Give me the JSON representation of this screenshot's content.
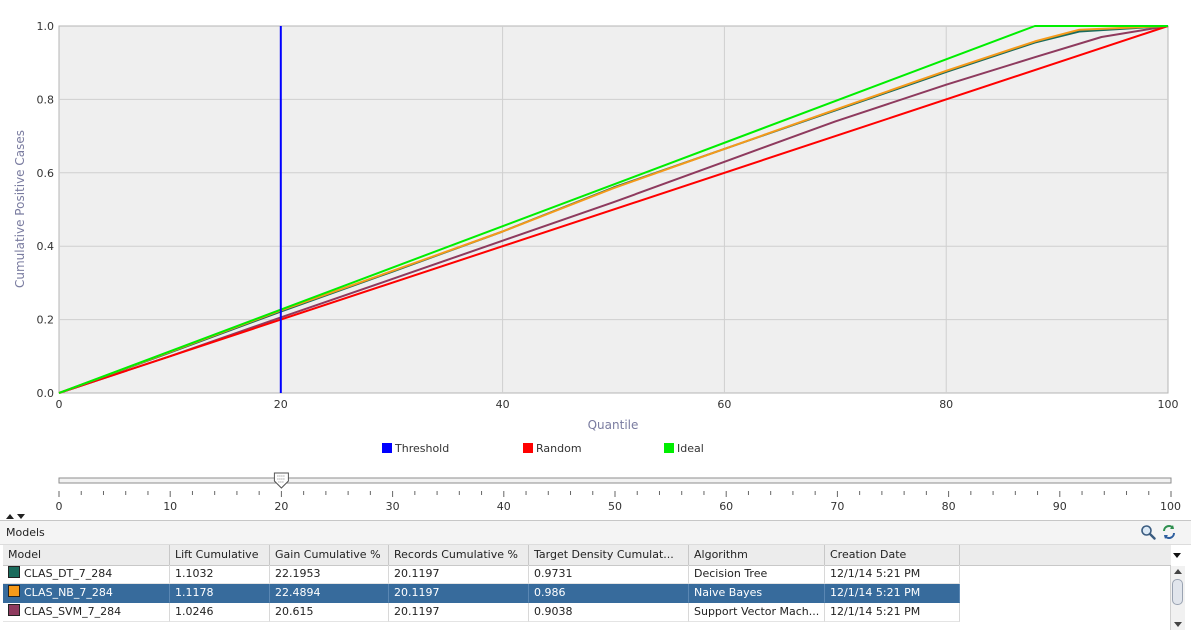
{
  "chart_data": {
    "type": "line",
    "title": "",
    "xlabel": "Quantile",
    "ylabel": "Cumulative Positive Cases",
    "xlim": [
      0,
      100
    ],
    "ylim": [
      0,
      1.0
    ],
    "x_ticks": [
      "0",
      "20",
      "40",
      "60",
      "80",
      "100"
    ],
    "y_ticks": [
      "0.0",
      "0.2",
      "0.4",
      "0.6",
      "0.8",
      "1.0"
    ],
    "grid": true,
    "threshold": 20,
    "series": [
      {
        "name": "Threshold",
        "color": "#0000ff",
        "x": [
          20,
          20
        ],
        "y": [
          0,
          1.0
        ]
      },
      {
        "name": "Random",
        "color": "#ff0000",
        "x": [
          0,
          100
        ],
        "y": [
          0,
          1.0
        ]
      },
      {
        "name": "Ideal",
        "color": "#00ee00",
        "x": [
          0,
          88,
          100
        ],
        "y": [
          0,
          1.0,
          1.0
        ]
      },
      {
        "name": "CLAS_DT_7_284",
        "color": "#1a6b5c",
        "x": [
          0,
          10,
          20,
          30,
          40,
          50,
          60,
          70,
          80,
          88,
          92,
          100
        ],
        "y": [
          0,
          0.11,
          0.222,
          0.33,
          0.44,
          0.56,
          0.665,
          0.77,
          0.875,
          0.955,
          0.985,
          1.0
        ]
      },
      {
        "name": "CLAS_NB_7_284",
        "color": "#f59a1a",
        "x": [
          0,
          10,
          20,
          30,
          40,
          50,
          60,
          70,
          80,
          88,
          92,
          100
        ],
        "y": [
          0,
          0.112,
          0.225,
          0.332,
          0.44,
          0.558,
          0.665,
          0.772,
          0.878,
          0.958,
          0.99,
          1.0
        ]
      },
      {
        "name": "CLAS_SVM_7_284",
        "color": "#8e3a5e",
        "x": [
          0,
          10,
          20,
          30,
          40,
          50,
          60,
          70,
          80,
          88,
          94,
          100
        ],
        "y": [
          0,
          0.1,
          0.206,
          0.31,
          0.415,
          0.52,
          0.63,
          0.74,
          0.84,
          0.915,
          0.97,
          1.0
        ]
      }
    ],
    "legend": [
      {
        "label": "Threshold",
        "color": "#0000ff"
      },
      {
        "label": "Random",
        "color": "#ff0000"
      },
      {
        "label": "Ideal",
        "color": "#00ee00"
      }
    ],
    "legend_position": "bottom"
  },
  "slider": {
    "value": 20,
    "min": 0,
    "max": 100,
    "labels": [
      "0",
      "10",
      "20",
      "30",
      "40",
      "50",
      "60",
      "70",
      "80",
      "90",
      "100"
    ]
  },
  "models_panel": {
    "title": "Models",
    "icons": {
      "search": "search-icon",
      "refresh": "refresh-icon"
    },
    "columns": [
      "Model",
      "Lift Cumulative",
      "Gain Cumulative %",
      "Records Cumulative %",
      "Target Density Cumulat...",
      "Algorithm",
      "Creation Date"
    ],
    "rows": [
      {
        "model": "CLAS_DT_7_284",
        "color": "#1a6b5c",
        "lift": "1.1032",
        "gain": "22.1953",
        "records": "20.1197",
        "density": "0.9731",
        "algorithm": "Decision Tree",
        "date": "12/1/14 5:21 PM",
        "selected": false
      },
      {
        "model": "CLAS_NB_7_284",
        "color": "#f59a1a",
        "lift": "1.1178",
        "gain": "22.4894",
        "records": "20.1197",
        "density": "0.986",
        "algorithm": "Naive Bayes",
        "date": "12/1/14 5:21 PM",
        "selected": true
      },
      {
        "model": "CLAS_SVM_7_284",
        "color": "#8e3a5e",
        "lift": "1.0246",
        "gain": "20.615",
        "records": "20.1197",
        "density": "0.9038",
        "algorithm": "Support Vector Mach...",
        "date": "12/1/14 5:21 PM",
        "selected": false
      }
    ]
  }
}
